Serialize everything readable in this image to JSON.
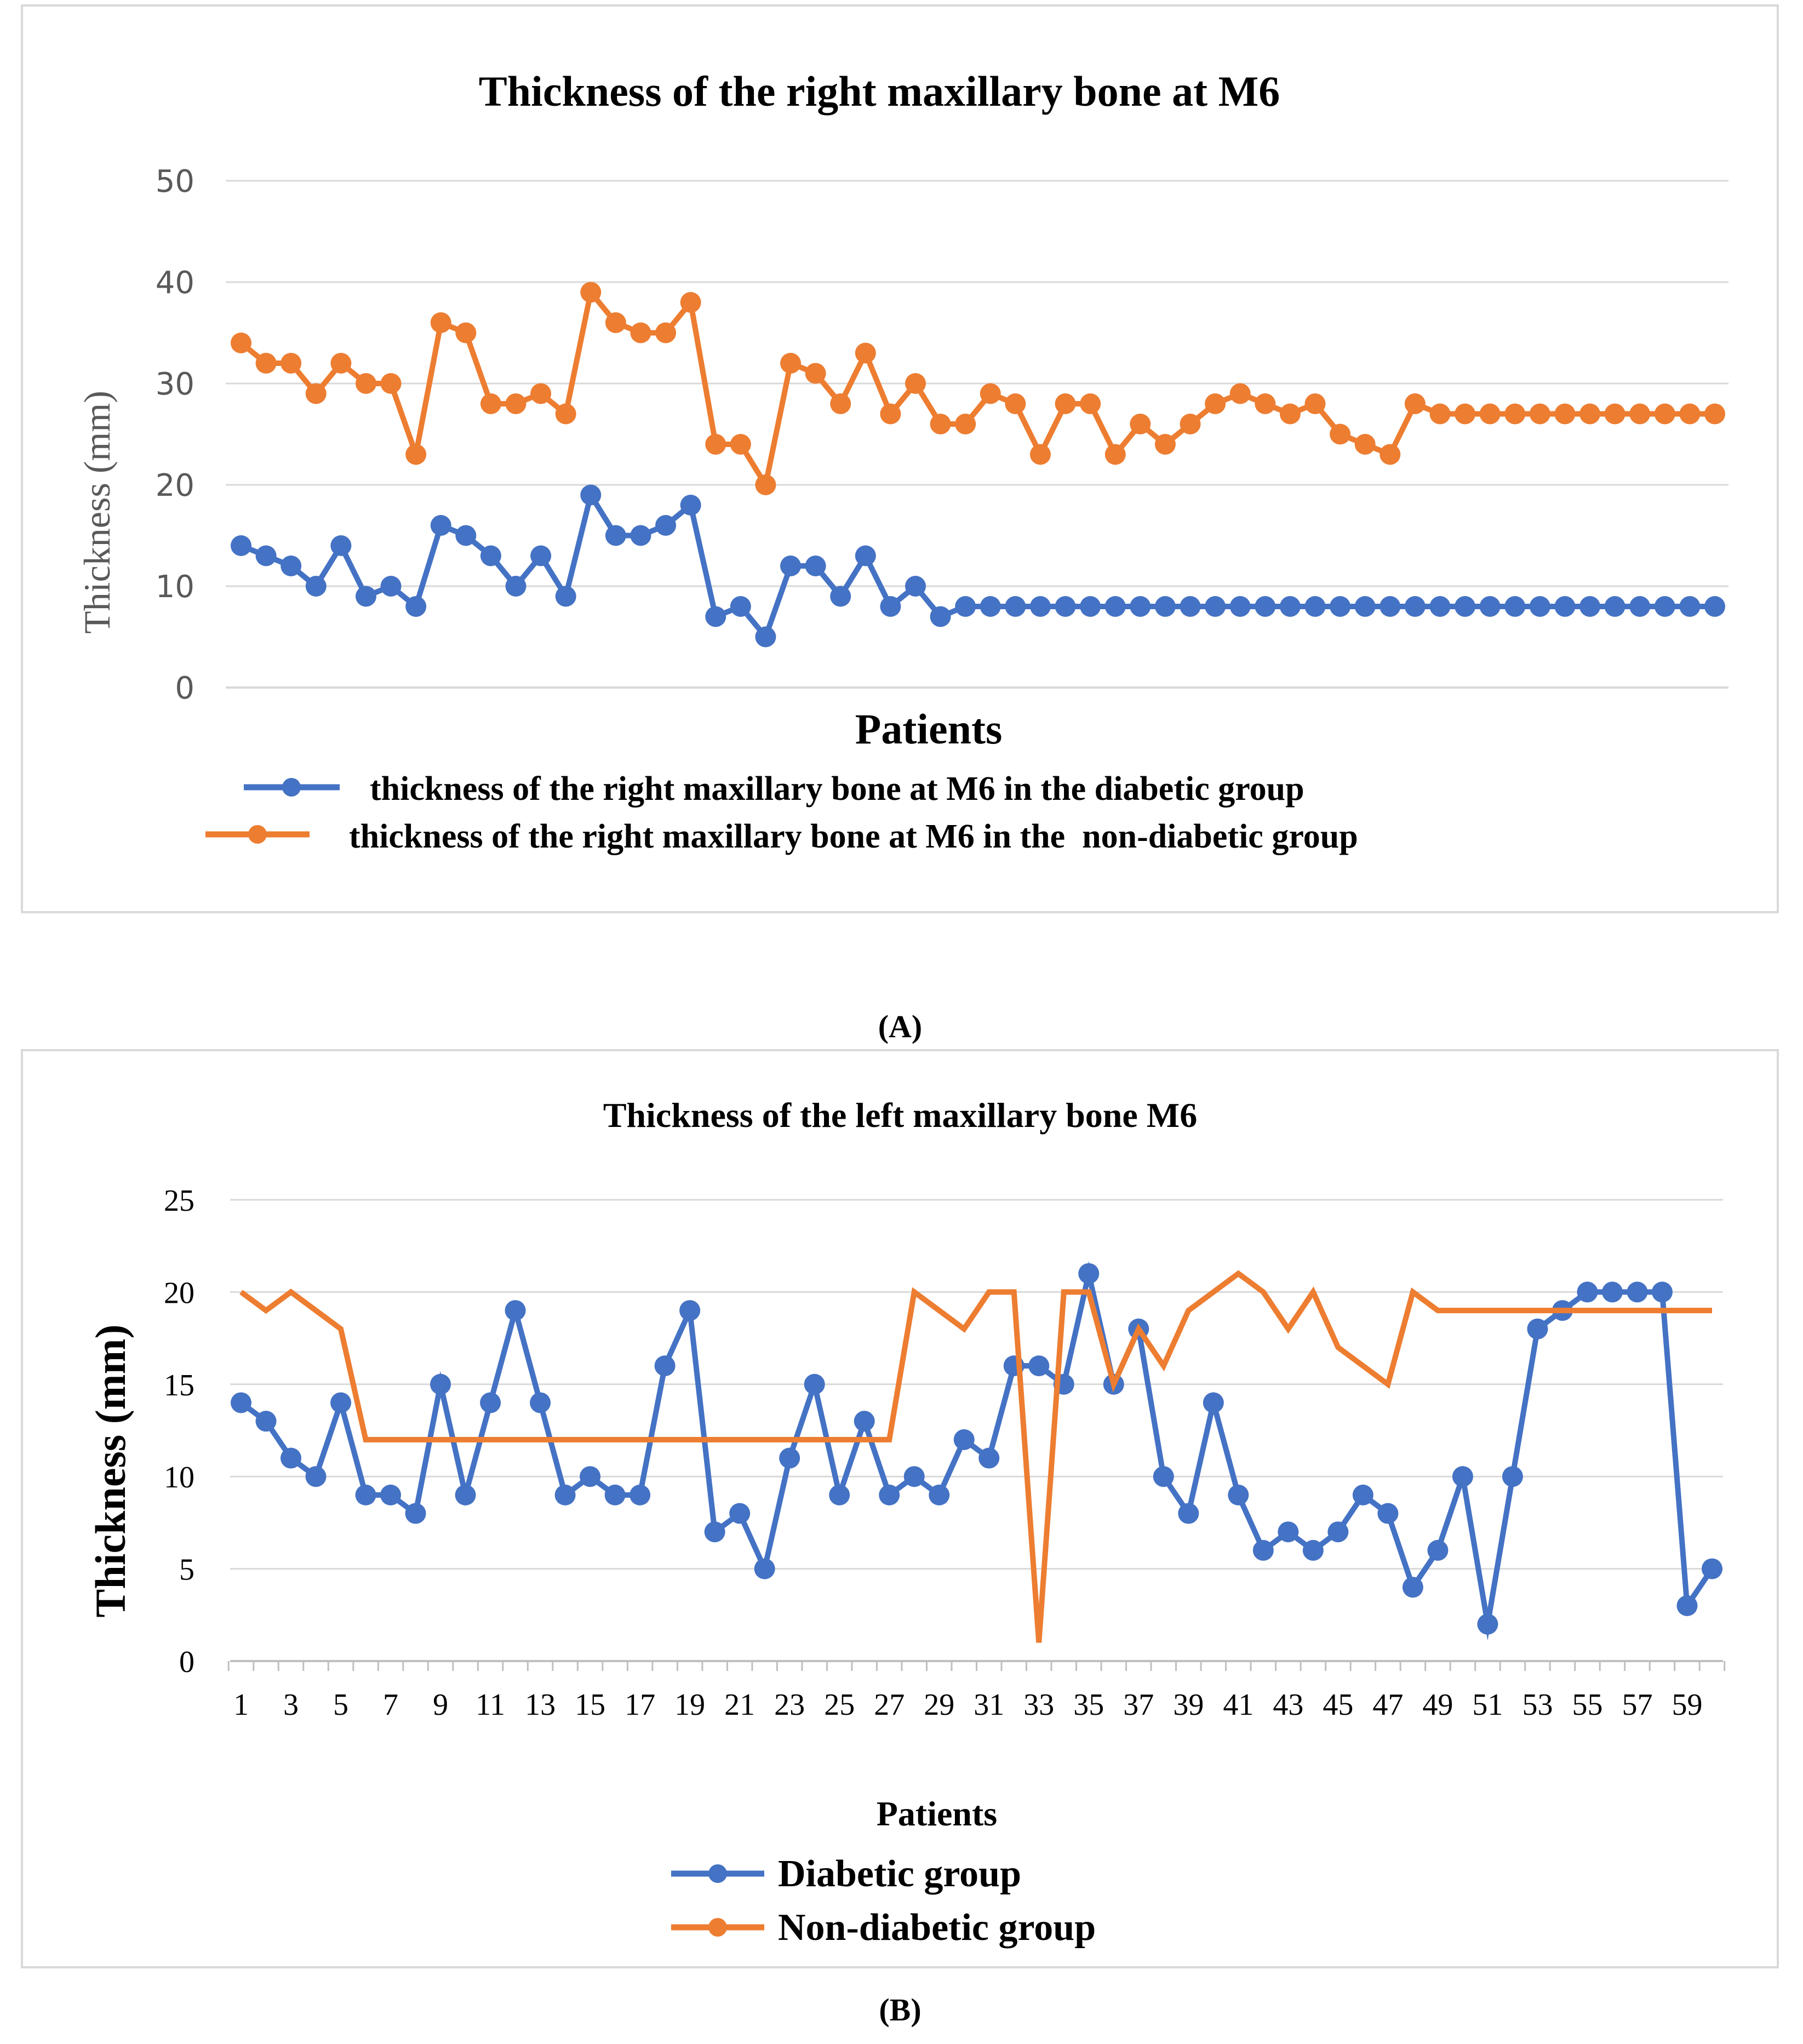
{
  "chart_data": [
    {
      "type": "line",
      "title": "Thickness of the right maxillary bone at M6",
      "xlabel": "Patients",
      "ylabel": "Thickness (mm)",
      "ylim": [
        0,
        50
      ],
      "yticks": [
        0,
        10,
        20,
        30,
        40,
        50
      ],
      "x": [
        1,
        2,
        3,
        4,
        5,
        6,
        7,
        8,
        9,
        10,
        11,
        12,
        13,
        14,
        15,
        16,
        17,
        18,
        19,
        20,
        21,
        22,
        23,
        24,
        25,
        26,
        27,
        28,
        29,
        30,
        31,
        32,
        33,
        34,
        35,
        36,
        37,
        38,
        39,
        40,
        41,
        42,
        43,
        44,
        45,
        46,
        47,
        48,
        49,
        50,
        51,
        52,
        53,
        54,
        55,
        56,
        57,
        58,
        59,
        60
      ],
      "show_xtick_labels": false,
      "grid": true,
      "legend_position": "bottom",
      "series": [
        {
          "name": "thickness of the right maxillary bone at M6 in the diabetic group",
          "color": "#4472C4",
          "markers": true,
          "values": [
            14,
            13,
            12,
            10,
            14,
            9,
            10,
            8,
            16,
            15,
            13,
            10,
            13,
            9,
            19,
            15,
            15,
            16,
            18,
            7,
            8,
            5,
            12,
            12,
            9,
            13,
            8,
            10,
            7,
            8,
            8,
            8,
            8,
            8,
            8,
            8,
            8,
            8,
            8,
            8,
            8,
            8,
            8,
            8,
            8,
            8,
            8,
            8,
            8,
            8,
            8,
            8,
            8,
            8,
            8,
            8,
            8,
            8,
            8,
            8
          ]
        },
        {
          "name": "thickness of the right maxillary bone at M6 in the  non-diabetic group",
          "color": "#ED7D31",
          "markers": true,
          "values": [
            34,
            32,
            32,
            29,
            32,
            30,
            30,
            23,
            36,
            35,
            28,
            28,
            29,
            27,
            39,
            36,
            35,
            35,
            38,
            24,
            24,
            20,
            32,
            31,
            28,
            33,
            27,
            30,
            26,
            26,
            29,
            28,
            23,
            28,
            28,
            23,
            26,
            24,
            26,
            28,
            29,
            28,
            27,
            28,
            25,
            24,
            23,
            28,
            27,
            27,
            27,
            27,
            27,
            27,
            27,
            27,
            27,
            27,
            27,
            27
          ]
        }
      ],
      "caption": "(A)"
    },
    {
      "type": "line",
      "title": "Thickness of the left maxillary bone M6",
      "xlabel": "Patients",
      "ylabel": "Thickness (mm)",
      "ylim": [
        0,
        25
      ],
      "yticks": [
        0,
        5,
        10,
        15,
        20,
        25
      ],
      "x": [
        1,
        2,
        3,
        4,
        5,
        6,
        7,
        8,
        9,
        10,
        11,
        12,
        13,
        14,
        15,
        16,
        17,
        18,
        19,
        20,
        21,
        22,
        23,
        24,
        25,
        26,
        27,
        28,
        29,
        30,
        31,
        32,
        33,
        34,
        35,
        36,
        37,
        38,
        39,
        40,
        41,
        42,
        43,
        44,
        45,
        46,
        47,
        48,
        49,
        50,
        51,
        52,
        53,
        54,
        55,
        56,
        57,
        58,
        59,
        60
      ],
      "xtick_labels": [
        "1",
        "3",
        "5",
        "7",
        "9",
        "11",
        "13",
        "15",
        "17",
        "19",
        "21",
        "23",
        "25",
        "27",
        "29",
        "31",
        "33",
        "35",
        "37",
        "39",
        "41",
        "43",
        "45",
        "47",
        "49",
        "51",
        "53",
        "55",
        "57",
        "59"
      ],
      "grid": true,
      "legend_position": "bottom",
      "series": [
        {
          "name": "Diabetic group",
          "color": "#4472C4",
          "markers": true,
          "values": [
            14,
            13,
            11,
            10,
            14,
            9,
            9,
            8,
            15,
            9,
            14,
            19,
            14,
            9,
            10,
            9,
            9,
            16,
            19,
            7,
            8,
            5,
            11,
            15,
            9,
            13,
            9,
            10,
            9,
            12,
            11,
            16,
            16,
            15,
            21,
            15,
            18,
            10,
            8,
            14,
            9,
            6,
            7,
            6,
            7,
            9,
            8,
            4,
            6,
            10,
            2,
            10,
            18,
            19,
            20,
            20,
            20,
            20,
            3,
            5
          ]
        },
        {
          "name": "Non-diabetic group",
          "color": "#ED7D31",
          "markers": false,
          "values": [
            20,
            19,
            20,
            19,
            18,
            12,
            12,
            12,
            12,
            12,
            12,
            12,
            12,
            12,
            12,
            12,
            12,
            12,
            12,
            12,
            12,
            12,
            12,
            12,
            12,
            12,
            12,
            20,
            19,
            18,
            20,
            20,
            1,
            20,
            20,
            15,
            18,
            16,
            19,
            20,
            21,
            20,
            18,
            20,
            17,
            16,
            15,
            20,
            19,
            19,
            19,
            19,
            19,
            19,
            19,
            19,
            19,
            19,
            19,
            19
          ]
        }
      ],
      "caption": "(B)"
    }
  ]
}
